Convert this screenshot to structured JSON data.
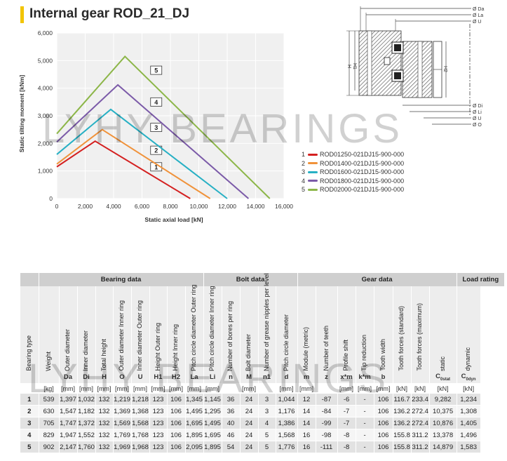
{
  "page": {
    "title": "Internal gear ROD_21_DJ",
    "watermark": "LYHY BEARINGS"
  },
  "chart_data": {
    "type": "line",
    "xlabel": "Static axial load [kN]",
    "ylabel": "Static tilting moment [kNm]",
    "xlim": [
      0,
      16000
    ],
    "ylim": [
      0,
      6000
    ],
    "xticks": [
      "0",
      "2,000",
      "4,000",
      "6,000",
      "8,000",
      "10,000",
      "12,000",
      "14,000",
      "16,000"
    ],
    "yticks": [
      "0",
      "1,000",
      "2,000",
      "3,000",
      "4,000",
      "5,000",
      "6,000"
    ],
    "grid": true,
    "series": [
      {
        "name": "ROD01250-021DJ15-900-000",
        "label": "1",
        "color": "#d42020",
        "x": [
          0,
          2700,
          9400
        ],
        "y": [
          1150,
          2080,
          0
        ],
        "marker": [
          7000,
          1150
        ]
      },
      {
        "name": "ROD01400-021DJ15-900-000",
        "label": "2",
        "color": "#f0923a",
        "x": [
          0,
          3200,
          10800
        ],
        "y": [
          1250,
          2500,
          0
        ],
        "marker": [
          7000,
          1750
        ]
      },
      {
        "name": "ROD01600-021DJ15-900-000",
        "label": "3",
        "color": "#27b0c4",
        "x": [
          0,
          3800,
          12000
        ],
        "y": [
          1600,
          3230,
          0
        ],
        "marker": [
          7000,
          2580
        ]
      },
      {
        "name": "ROD01800-021DJ15-900-000",
        "label": "4",
        "color": "#7b5aa8",
        "x": [
          0,
          4300,
          13500
        ],
        "y": [
          2050,
          4120,
          0
        ],
        "marker": [
          7000,
          3500
        ]
      },
      {
        "name": "ROD02000-021DJ15-900-000",
        "label": "5",
        "color": "#8cb648",
        "x": [
          0,
          4800,
          15000
        ],
        "y": [
          2350,
          5150,
          0
        ],
        "marker": [
          7000,
          4650
        ]
      }
    ]
  },
  "drawing": {
    "labels": [
      "Ø Da",
      "Ø La",
      "Ø U",
      "H2",
      "H1",
      "Ø Di",
      "Ø Li",
      "Ø O"
    ]
  },
  "table": {
    "groups": [
      {
        "label": "",
        "span": 1
      },
      {
        "label": "Bearing data",
        "span": 9
      },
      {
        "label": "Bolt data",
        "span": 5
      },
      {
        "label": "Gear data",
        "span": 8
      },
      {
        "label": "Load rating",
        "span": 2
      }
    ],
    "columns": [
      {
        "head": "Bearing type",
        "sym": "",
        "unit": ""
      },
      {
        "head": "Weight",
        "sym": "",
        "unit": "[kg]"
      },
      {
        "head": "Outer diameter",
        "sym": "Da",
        "unit": "[mm]"
      },
      {
        "head": "Inner diameter",
        "sym": "Di",
        "unit": "[mm]"
      },
      {
        "head": "Total height",
        "sym": "H",
        "unit": "[mm]"
      },
      {
        "head": "Outer diameter Inner ring",
        "sym": "O",
        "unit": "[mm]"
      },
      {
        "head": "Inner diameter Outer ring",
        "sym": "U",
        "unit": "[mm]"
      },
      {
        "head": "Height Outer ring",
        "sym": "H1",
        "unit": "[mm]"
      },
      {
        "head": "Height Inner ring",
        "sym": "H2",
        "unit": "[mm]"
      },
      {
        "head": "Pitch circle diameter Outer ring",
        "sym": "La",
        "unit": "[mm]"
      },
      {
        "head": "Pitch circle diameter Inner ring",
        "sym": "Li",
        "unit": "[mm]"
      },
      {
        "head": "Number of bores per ring",
        "sym": "n",
        "unit": ""
      },
      {
        "head": "Bolt diameter",
        "sym": "M",
        "unit": "[mm]"
      },
      {
        "head": "Number of grease nipples per level",
        "sym": "n1",
        "unit": ""
      },
      {
        "head": "Pitch circle diameter",
        "sym": "d",
        "unit": "[mm]"
      },
      {
        "head": "Module (metric)",
        "sym": "m",
        "unit": "[mm]"
      },
      {
        "head": "Number of teeth",
        "sym": "z",
        "unit": ""
      },
      {
        "head": "Profile shift",
        "sym": "x*m",
        "unit": "[mm]"
      },
      {
        "head": "Tip reduction",
        "sym": "k*m",
        "unit": "[mm]"
      },
      {
        "head": "Tooth width",
        "sym": "b",
        "unit": "[mm]"
      },
      {
        "head": "Tooth forces (standard)",
        "sym": "",
        "unit": "[kN]"
      },
      {
        "head": "Tooth forces (maximum)",
        "sym": "",
        "unit": "[kN]"
      },
      {
        "head": "static",
        "sym": "C0stat",
        "unit": "[kN]"
      },
      {
        "head": "dynamic",
        "sym": "C0dyn",
        "unit": "[kN]"
      }
    ],
    "rows": [
      [
        "1",
        "539",
        "1,397",
        "1,032",
        "132",
        "1,219",
        "1,218",
        "123",
        "106",
        "1,345",
        "1,145",
        "36",
        "24",
        "3",
        "1,044",
        "12",
        "-87",
        "-6",
        "-",
        "106",
        "116.7",
        "233.4",
        "9,282",
        "1,234"
      ],
      [
        "2",
        "630",
        "1,547",
        "1,182",
        "132",
        "1,369",
        "1,368",
        "123",
        "106",
        "1,495",
        "1,295",
        "36",
        "24",
        "3",
        "1,176",
        "14",
        "-84",
        "-7",
        "-",
        "106",
        "136.2",
        "272.4",
        "10,375",
        "1,308"
      ],
      [
        "3",
        "705",
        "1,747",
        "1,372",
        "132",
        "1,569",
        "1,568",
        "123",
        "106",
        "1,695",
        "1,495",
        "40",
        "24",
        "4",
        "1,386",
        "14",
        "-99",
        "-7",
        "-",
        "106",
        "136.2",
        "272.4",
        "10,876",
        "1,405"
      ],
      [
        "4",
        "829",
        "1,947",
        "1,552",
        "132",
        "1,769",
        "1,768",
        "123",
        "106",
        "1,895",
        "1,695",
        "46",
        "24",
        "5",
        "1,568",
        "16",
        "-98",
        "-8",
        "-",
        "106",
        "155.8",
        "311.2",
        "13,378",
        "1,496"
      ],
      [
        "5",
        "902",
        "2,147",
        "1,760",
        "132",
        "1,969",
        "1,968",
        "123",
        "106",
        "2,095",
        "1,895",
        "54",
        "24",
        "5",
        "1,776",
        "16",
        "-111",
        "-8",
        "-",
        "106",
        "155.8",
        "311.2",
        "14,879",
        "1,583"
      ]
    ]
  }
}
